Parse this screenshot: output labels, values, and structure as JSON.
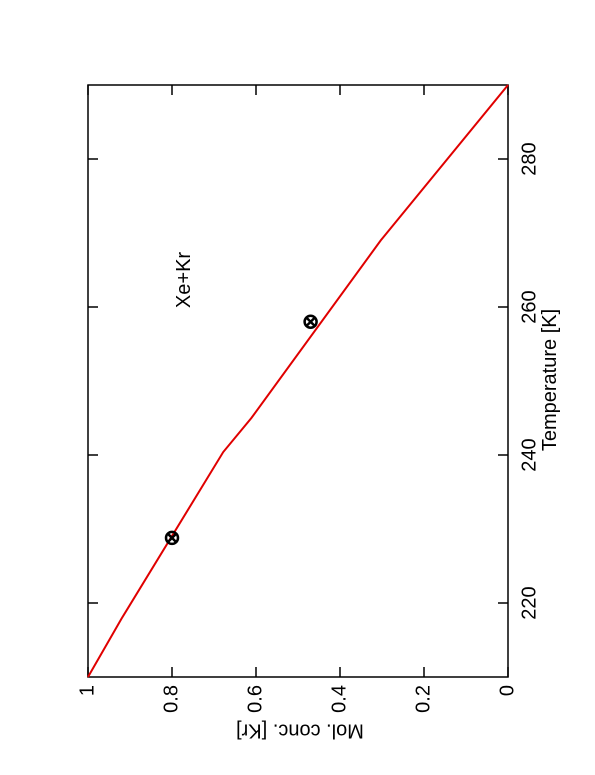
{
  "chart_data": {
    "type": "line",
    "annotation": "Xe+Kr",
    "x_label": "Temperature [K]",
    "y_label": "Mol. conc. [Kr]",
    "xlim": [
      210,
      290
    ],
    "xticks": [
      220,
      240,
      260,
      280
    ],
    "ylim": [
      0,
      1
    ],
    "yticks": [
      0,
      {
        "value": 0.2,
        "label": "0.2"
      },
      {
        "value": 0.4,
        "label": "0.4"
      },
      {
        "value": 0.6,
        "label": "0.6"
      },
      {
        "value": 0.8,
        "label": "0.8"
      },
      1
    ],
    "series": [
      {
        "color": "#e00000",
        "x": [
          210,
          217.9,
          240.4,
          245,
          269,
          290
        ],
        "values": [
          1,
          0.92,
          0.678,
          0.611,
          0.303,
          0
        ]
      },
      {
        "type": "scatter",
        "color": "#000000",
        "x": [
          228.8,
          258
        ],
        "values": [
          0.8,
          0.47
        ]
      }
    ]
  }
}
